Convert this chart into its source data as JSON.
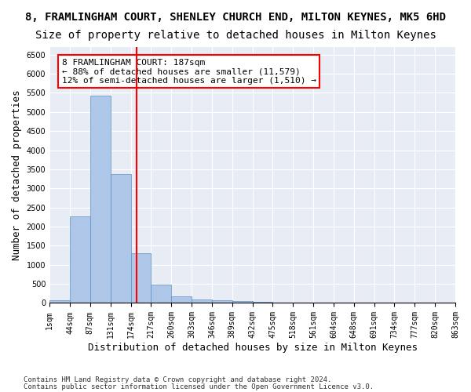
{
  "title": "8, FRAMLINGHAM COURT, SHENLEY CHURCH END, MILTON KEYNES, MK5 6HD",
  "subtitle": "Size of property relative to detached houses in Milton Keynes",
  "xlabel": "Distribution of detached houses by size in Milton Keynes",
  "ylabel": "Number of detached properties",
  "footnote1": "Contains HM Land Registry data © Crown copyright and database right 2024.",
  "footnote2": "Contains public sector information licensed under the Open Government Licence v3.0.",
  "bin_labels": [
    "1sqm",
    "44sqm",
    "87sqm",
    "131sqm",
    "174sqm",
    "217sqm",
    "260sqm",
    "303sqm",
    "346sqm",
    "389sqm",
    "432sqm",
    "475sqm",
    "518sqm",
    "561sqm",
    "604sqm",
    "648sqm",
    "691sqm",
    "734sqm",
    "777sqm",
    "820sqm",
    "863sqm"
  ],
  "bar_values": [
    70,
    2270,
    5420,
    3380,
    1310,
    480,
    165,
    90,
    75,
    55,
    30,
    15,
    10,
    5,
    3,
    2,
    2,
    1,
    1,
    1
  ],
  "bar_color": "#aec6e8",
  "bar_edge_color": "#5a8fc4",
  "vline_x": 4.3,
  "vline_color": "red",
  "annotation_text": "8 FRAMLINGHAM COURT: 187sqm\n← 88% of detached houses are smaller (11,579)\n12% of semi-detached houses are larger (1,510) →",
  "annotation_box_color": "white",
  "annotation_box_edge": "red",
  "ylim": [
    0,
    6700
  ],
  "yticks": [
    0,
    500,
    1000,
    1500,
    2000,
    2500,
    3000,
    3500,
    4000,
    4500,
    5000,
    5500,
    6000,
    6500
  ],
  "bg_color": "#e8ecf5",
  "grid_color": "white",
  "title_fontsize": 10,
  "subtitle_fontsize": 10,
  "axis_label_fontsize": 9,
  "tick_fontsize": 7,
  "annotation_fontsize": 8,
  "footnote_fontsize": 6.5
}
